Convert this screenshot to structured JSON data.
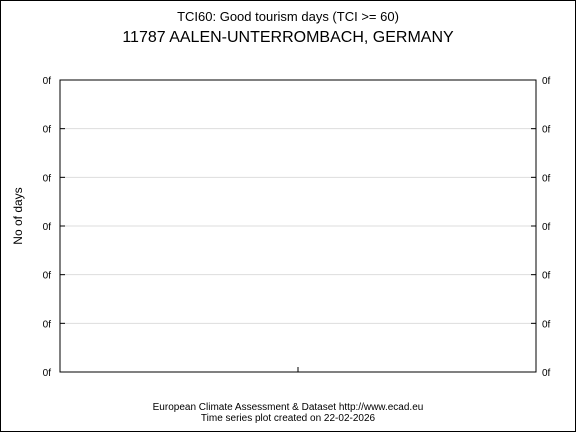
{
  "chart_data": {
    "type": "line",
    "title": "TCI60: Good tourism days (TCI >= 60)",
    "subtitle": "11787 AALEN-UNTERROMBACH, GERMANY",
    "ylabel": "No of days",
    "y_tick_labels": [
      "0f",
      "0f",
      "0f",
      "0f",
      "0f",
      "0f",
      "0f"
    ],
    "grid": true,
    "series": []
  },
  "footer": {
    "line1": "European Climate Assessment & Dataset  http://www.ecad.eu",
    "line2": "Time series plot created on 22-02-2026"
  },
  "colors": {
    "axis": "#000000",
    "grid": "#dddddd",
    "background": "#ffffff"
  }
}
